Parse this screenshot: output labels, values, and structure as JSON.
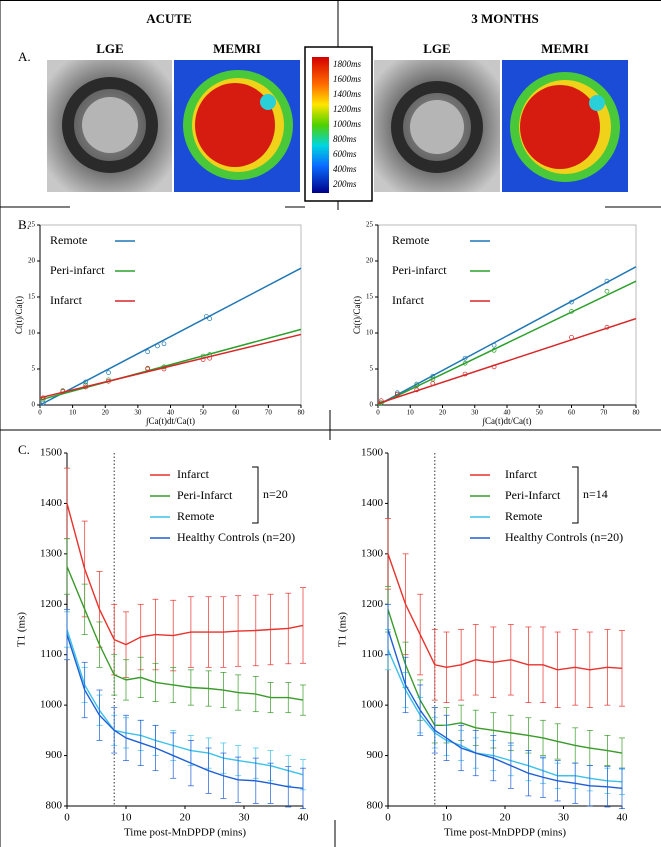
{
  "figure": {
    "panel_labels": [
      "A.",
      "B.",
      "C."
    ],
    "left_title": "ACUTE",
    "right_title": "3 MONTHS",
    "image_labels": [
      "LGE",
      "MEMRI",
      "LGE",
      "MEMRI"
    ],
    "colorbar": {
      "labels": [
        "1800ms",
        "1600ms",
        "1400ms",
        "1200ms",
        "1000ms",
        "800ms",
        "600ms",
        "400ms",
        "200ms"
      ]
    }
  },
  "chart_data": [
    {
      "type": "scatter",
      "x_label": "∫Ca(t)dt/Ca(t)",
      "y_label": "Ct(t)/Ca(t)",
      "xlim": [
        0,
        80
      ],
      "xticks": [
        0,
        10,
        20,
        30,
        40,
        50,
        60,
        70,
        80
      ],
      "ylim": [
        0,
        25
      ],
      "yticks": [
        0,
        5,
        10,
        15,
        20,
        25
      ],
      "series": [
        {
          "name": "Remote",
          "color": "#1f77b4",
          "x": [
            1,
            7,
            14,
            21,
            33,
            36,
            38,
            51,
            52
          ],
          "values": [
            0.3,
            1.9,
            3.2,
            4.5,
            7.4,
            8.2,
            8.5,
            12.3,
            12
          ],
          "fit": [
            0,
            19
          ]
        },
        {
          "name": "Peri-infarct",
          "color": "#2ca02c",
          "x": [
            1,
            7,
            14,
            21,
            33,
            38,
            50,
            52
          ],
          "values": [
            0.8,
            2,
            2.8,
            3.5,
            5,
            5.3,
            6.8,
            7
          ],
          "fit": [
            0.7,
            10.5
          ]
        },
        {
          "name": "Infarct",
          "color": "#d62728",
          "x": [
            1,
            7,
            14,
            21,
            33,
            38,
            50,
            52
          ],
          "values": [
            1,
            1.9,
            2.5,
            3.3,
            5.1,
            5,
            6.3,
            6.5
          ],
          "fit": [
            1,
            9.8
          ]
        }
      ]
    },
    {
      "type": "scatter",
      "x_label": "∫Ca(t)dt/Ca(t)",
      "y_label": "Ct(t)/Ca(t)",
      "xlim": [
        0,
        80
      ],
      "xticks": [
        0,
        10,
        20,
        30,
        40,
        50,
        60,
        70,
        80
      ],
      "ylim": [
        0,
        25
      ],
      "yticks": [
        0,
        5,
        10,
        15,
        20,
        25
      ],
      "series": [
        {
          "name": "Remote",
          "color": "#1f77b4",
          "x": [
            1,
            6,
            12,
            17,
            27,
            36,
            60,
            71
          ],
          "values": [
            0.3,
            1.7,
            2.9,
            4,
            6.5,
            8.3,
            14.3,
            17.2
          ],
          "fit": [
            0,
            19.2
          ]
        },
        {
          "name": "Peri-infarct",
          "color": "#2ca02c",
          "x": [
            1,
            6,
            12,
            17,
            27,
            36,
            60,
            71
          ],
          "values": [
            0.3,
            1.5,
            2.7,
            3.6,
            5.8,
            7.6,
            13,
            15.8
          ],
          "fit": [
            0,
            17.2
          ]
        },
        {
          "name": "Infarct",
          "color": "#d62728",
          "x": [
            1,
            6,
            12,
            17,
            27,
            36,
            60,
            71
          ],
          "values": [
            0.6,
            1.5,
            2.1,
            3,
            4.3,
            5.3,
            9.4,
            10.8
          ],
          "fit": [
            0.2,
            12
          ]
        }
      ]
    },
    {
      "type": "line",
      "x_label": "Time post-MnDPDP (mins)",
      "y_label": "T1 (ms)",
      "xlim": [
        0,
        40
      ],
      "xticks": [
        0,
        10,
        20,
        30,
        40
      ],
      "ylim": [
        800,
        1500
      ],
      "yticks": [
        800,
        900,
        1000,
        1100,
        1200,
        1300,
        1400,
        1500
      ],
      "vline": 8,
      "group_label": "n=20",
      "x": [
        0,
        3,
        5.5,
        8,
        10,
        12.5,
        15,
        18,
        21,
        24,
        26.5,
        29,
        32,
        34.5,
        37.5,
        40
      ],
      "series": [
        {
          "name": "Infarct",
          "color": "#e8322c",
          "values": [
            1400,
            1270,
            1190,
            1130,
            1120,
            1135,
            1140,
            1138,
            1145,
            1145,
            1145,
            1147,
            1148,
            1150,
            1152,
            1158
          ],
          "errors": [
            70,
            95,
            75,
            70,
            65,
            65,
            70,
            70,
            70,
            70,
            70,
            70,
            70,
            70,
            70,
            75
          ]
        },
        {
          "name": "Peri-Infarct",
          "color": "#3a9a2a",
          "values": [
            1275,
            1190,
            1120,
            1060,
            1050,
            1055,
            1045,
            1040,
            1035,
            1033,
            1030,
            1025,
            1022,
            1015,
            1015,
            1010
          ],
          "errors": [
            55,
            50,
            45,
            40,
            40,
            40,
            38,
            35,
            35,
            35,
            35,
            35,
            35,
            30,
            30,
            30
          ]
        },
        {
          "name": "Remote",
          "color": "#3cc2ea",
          "values": [
            1150,
            1040,
            990,
            950,
            945,
            940,
            930,
            920,
            910,
            905,
            895,
            890,
            885,
            880,
            870,
            862
          ],
          "errors": [
            35,
            35,
            30,
            30,
            30,
            30,
            30,
            30,
            30,
            30,
            30,
            30,
            30,
            30,
            30,
            30
          ]
        },
        {
          "name": "Healthy Controls (n=20)",
          "color": "#1f5fd6",
          "values": [
            1140,
            1030,
            980,
            950,
            935,
            925,
            915,
            900,
            885,
            870,
            860,
            852,
            850,
            845,
            838,
            835
          ],
          "errors": [
            50,
            55,
            50,
            45,
            45,
            45,
            45,
            45,
            45,
            45,
            45,
            45,
            45,
            40,
            40,
            40
          ]
        }
      ]
    },
    {
      "type": "line",
      "x_label": "Time post-MnDPDP (mins)",
      "y_label": "T1 (ms)",
      "xlim": [
        0,
        40
      ],
      "xticks": [
        0,
        10,
        20,
        30,
        40
      ],
      "ylim": [
        800,
        1500
      ],
      "yticks": [
        800,
        900,
        1000,
        1100,
        1200,
        1300,
        1400,
        1500
      ],
      "vline": 8,
      "group_label": "n=14",
      "x": [
        0,
        3,
        5.5,
        8,
        10,
        12.5,
        15,
        18,
        21,
        24,
        26.5,
        29,
        32,
        34.5,
        37.5,
        40
      ],
      "series": [
        {
          "name": "Infarct",
          "color": "#e8322c",
          "values": [
            1300,
            1200,
            1140,
            1080,
            1075,
            1080,
            1090,
            1085,
            1090,
            1080,
            1080,
            1070,
            1075,
            1070,
            1075,
            1073
          ],
          "errors": [
            70,
            100,
            80,
            70,
            70,
            70,
            70,
            70,
            70,
            75,
            75,
            75,
            75,
            75,
            75,
            75
          ]
        },
        {
          "name": "Peri-Infarct",
          "color": "#3a9a2a",
          "values": [
            1190,
            1080,
            1010,
            960,
            960,
            965,
            955,
            950,
            945,
            940,
            935,
            928,
            920,
            915,
            910,
            905
          ],
          "errors": [
            45,
            45,
            40,
            35,
            35,
            35,
            35,
            35,
            35,
            35,
            35,
            35,
            35,
            35,
            30,
            30
          ]
        },
        {
          "name": "Remote",
          "color": "#3cc2ea",
          "values": [
            1110,
            1030,
            980,
            945,
            930,
            920,
            905,
            900,
            890,
            880,
            870,
            860,
            860,
            855,
            850,
            848
          ],
          "errors": [
            40,
            35,
            35,
            30,
            30,
            30,
            30,
            30,
            30,
            30,
            25,
            25,
            25,
            25,
            25,
            25
          ]
        },
        {
          "name": "Healthy Controls (n=20)",
          "color": "#1f5fd6",
          "values": [
            1150,
            1040,
            990,
            950,
            935,
            915,
            905,
            895,
            880,
            865,
            857,
            850,
            845,
            840,
            838,
            835
          ],
          "errors": [
            50,
            55,
            50,
            45,
            45,
            45,
            45,
            45,
            45,
            45,
            40,
            40,
            40,
            40,
            40,
            40
          ]
        }
      ]
    }
  ]
}
